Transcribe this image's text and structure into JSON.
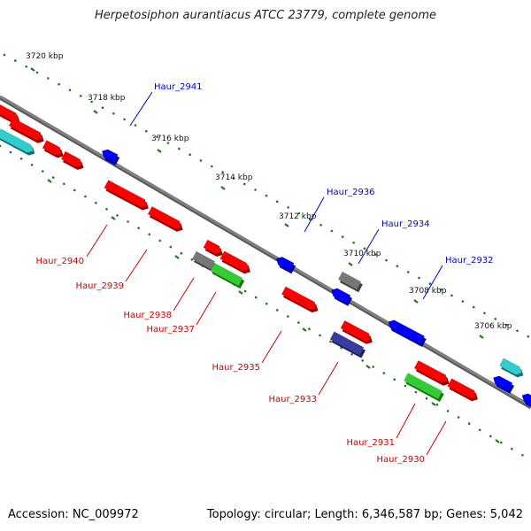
{
  "title": "Herpetosiphon aurantiacus ATCC 23779, complete genome",
  "footer": {
    "accession": "Accession: NC_009972",
    "stats": "Topology: circular; Length: 6,346,587 bp; Genes: 5,042"
  },
  "colors": {
    "backbone": "#808080",
    "tick_dots": "#1a7a1a",
    "label_top": "#0000cc",
    "label_bottom": "#cc0000",
    "gene_red": "#ff0000",
    "gene_blue": "#0000ff",
    "gene_cyan": "#33cccc",
    "gene_green": "#33cc33",
    "gene_gray": "#777777",
    "gene_navy": "#3a3aa0"
  },
  "scale_labels": [
    "3720 kbp",
    "3718 kbp",
    "3716 kbp",
    "3714 kbp",
    "3712 kbp",
    "3710 kbp",
    "3708 kbp",
    "3706 kbp"
  ],
  "gene_labels_top": [
    "Haur_2941",
    "Haur_2936",
    "Haur_2934",
    "Haur_2932"
  ],
  "gene_labels_bottom": [
    "Haur_2940",
    "Haur_2939",
    "Haur_2938",
    "Haur_2937",
    "Haur_2935",
    "Haur_2933",
    "Haur_2931",
    "Haur_2930"
  ]
}
